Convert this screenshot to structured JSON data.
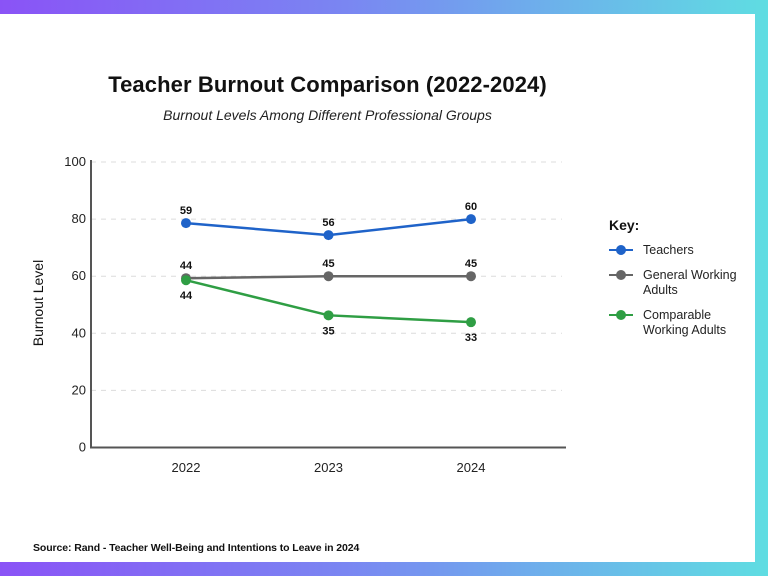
{
  "frame": {
    "gradient_start": "#8a53f6",
    "gradient_end": "#5fdde2",
    "background": "#ffffff"
  },
  "chart_data": {
    "type": "line",
    "title": "Teacher Burnout Comparison (2022-2024)",
    "subtitle": "Burnout Levels Among Different Professional Groups",
    "xlabel": "",
    "ylabel": "Burnout Level",
    "categories": [
      "2022",
      "2023",
      "2024"
    ],
    "yticks": [
      0,
      20,
      40,
      60,
      80,
      100
    ],
    "ylim": [
      0,
      100
    ],
    "grid": true,
    "legend_title": "Key:",
    "legend_position": "right",
    "series": [
      {
        "name": "Teachers",
        "color": "#1f63c9",
        "labels": [
          59,
          56,
          60
        ],
        "plotted_positions": [
          78.6,
          74.4,
          80
        ],
        "label_position": "above"
      },
      {
        "name": "General Working Adults",
        "color": "#666666",
        "labels": [
          44,
          45,
          45
        ],
        "plotted_positions": [
          59.3,
          60,
          60
        ],
        "label_position": "above"
      },
      {
        "name": "Comparable Working Adults",
        "color": "#2f9e44",
        "labels": [
          44,
          35,
          33
        ],
        "plotted_positions": [
          58.6,
          46.3,
          43.9
        ],
        "label_position": "below"
      }
    ],
    "legend_labels": [
      [
        "Teachers"
      ],
      [
        "General Working",
        "Adults"
      ],
      [
        "Comparable",
        "Working Adults"
      ]
    ]
  },
  "source": "Source: Rand - Teacher Well-Being and Intentions to Leave in 2024"
}
